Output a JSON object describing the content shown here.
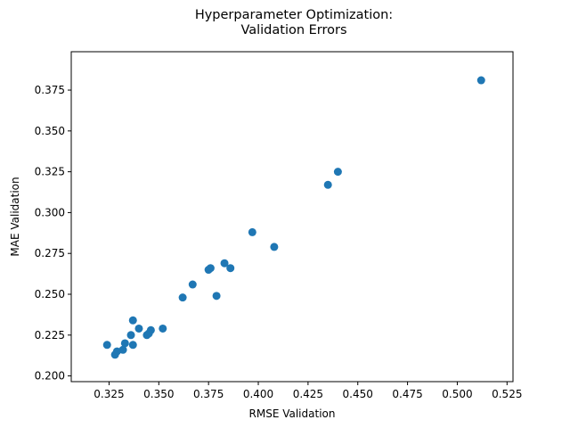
{
  "chart_data": {
    "type": "scatter",
    "title": "Hyperparameter Optimization:\nValidation Errors",
    "xlabel": "RMSE Validation",
    "ylabel": "MAE Validation",
    "xlim": [
      0.306,
      0.528
    ],
    "ylim": [
      0.1965,
      0.3985
    ],
    "grid": false,
    "legend": "none",
    "xticks": [
      0.325,
      0.35,
      0.375,
      0.4,
      0.425,
      0.45,
      0.475,
      0.5,
      0.525
    ],
    "xtick_labels": [
      "0.325",
      "0.350",
      "0.375",
      "0.400",
      "0.425",
      "0.450",
      "0.475",
      "0.500",
      "0.525"
    ],
    "yticks": [
      0.2,
      0.225,
      0.25,
      0.275,
      0.3,
      0.325,
      0.35,
      0.375
    ],
    "ytick_labels": [
      "0.200",
      "0.225",
      "0.250",
      "0.275",
      "0.300",
      "0.325",
      "0.350",
      "0.375"
    ],
    "marker_color": "#1f77b4",
    "series": [
      {
        "points": [
          {
            "x": 0.512,
            "y": 0.381
          },
          {
            "x": 0.44,
            "y": 0.325
          },
          {
            "x": 0.435,
            "y": 0.317
          },
          {
            "x": 0.408,
            "y": 0.279
          },
          {
            "x": 0.397,
            "y": 0.288
          },
          {
            "x": 0.386,
            "y": 0.266
          },
          {
            "x": 0.383,
            "y": 0.269
          },
          {
            "x": 0.379,
            "y": 0.249
          },
          {
            "x": 0.376,
            "y": 0.266
          },
          {
            "x": 0.375,
            "y": 0.265
          },
          {
            "x": 0.367,
            "y": 0.256
          },
          {
            "x": 0.362,
            "y": 0.248
          },
          {
            "x": 0.352,
            "y": 0.229
          },
          {
            "x": 0.346,
            "y": 0.228
          },
          {
            "x": 0.345,
            "y": 0.226
          },
          {
            "x": 0.344,
            "y": 0.225
          },
          {
            "x": 0.34,
            "y": 0.229
          },
          {
            "x": 0.337,
            "y": 0.219
          },
          {
            "x": 0.337,
            "y": 0.234
          },
          {
            "x": 0.336,
            "y": 0.225
          },
          {
            "x": 0.333,
            "y": 0.22
          },
          {
            "x": 0.332,
            "y": 0.216
          },
          {
            "x": 0.329,
            "y": 0.215
          },
          {
            "x": 0.328,
            "y": 0.213
          },
          {
            "x": 0.324,
            "y": 0.219
          }
        ]
      }
    ]
  }
}
